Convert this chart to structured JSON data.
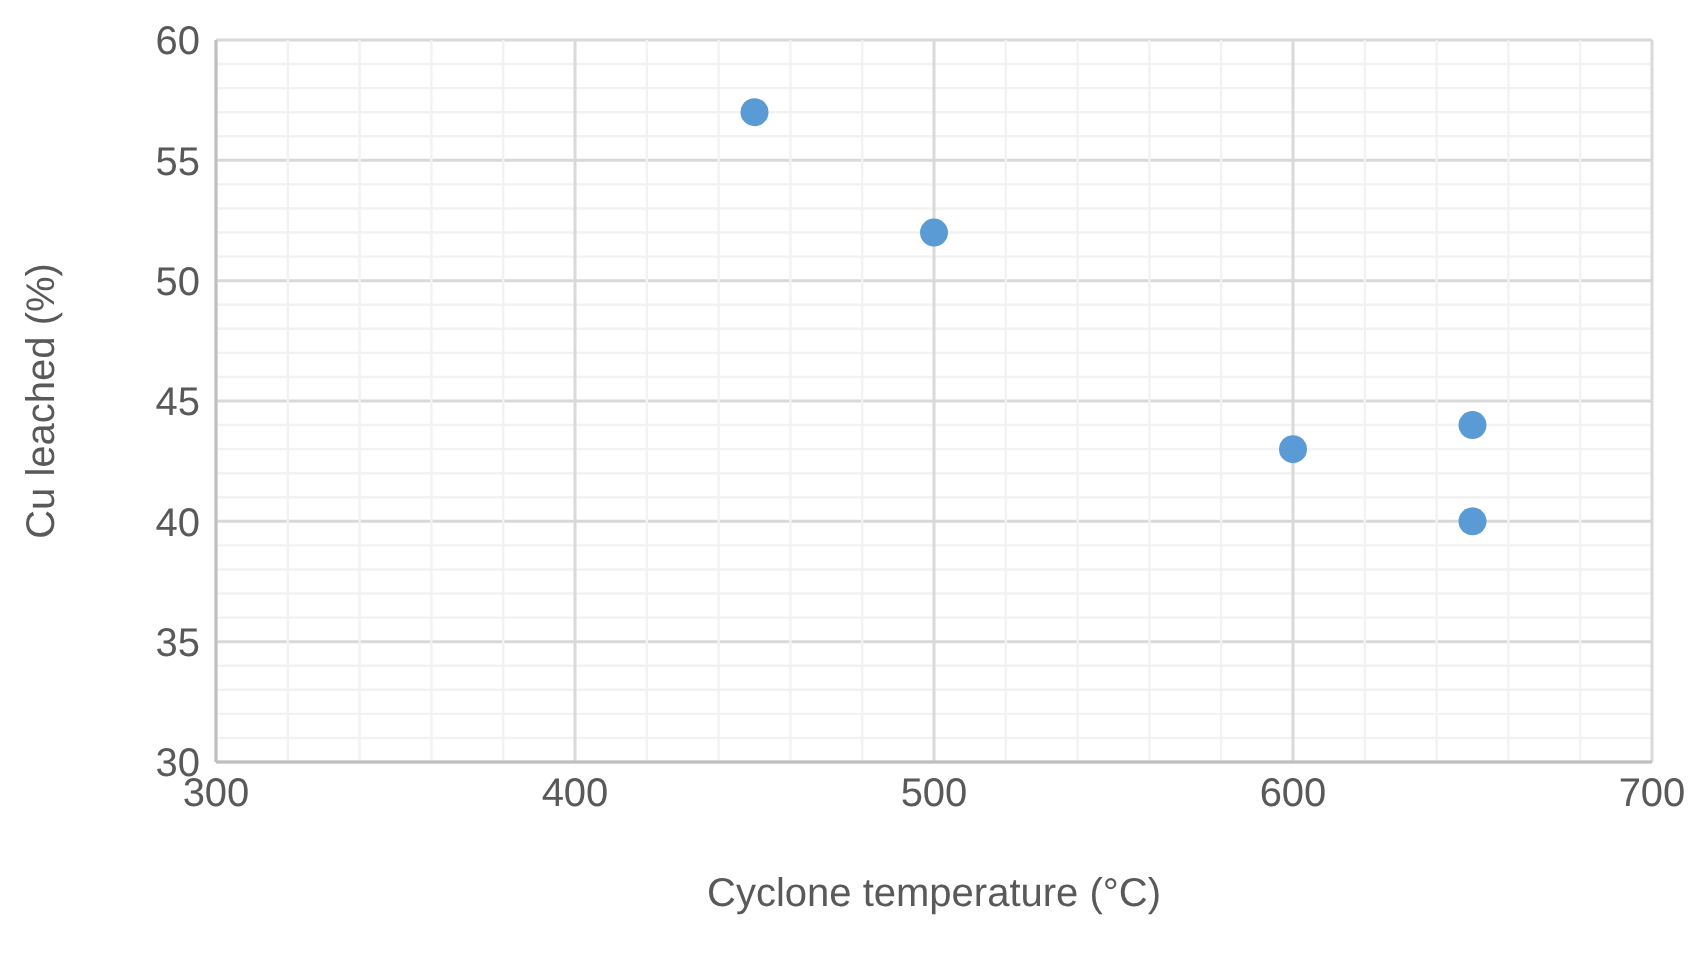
{
  "chart_data": {
    "type": "scatter",
    "xlabel": "Cyclone temperature (°C)",
    "ylabel": "Cu leached (%)",
    "x": [
      450,
      500,
      600,
      650,
      650
    ],
    "series": [
      {
        "color": "#5b9bd5",
        "values": [
          57,
          52,
          43,
          44,
          40
        ]
      }
    ],
    "xlim": [
      300,
      700
    ],
    "xticks": [
      300,
      {
        "value": 320,
        "label": null
      },
      {
        "value": 340,
        "label": null
      },
      {
        "value": 360,
        "label": null
      },
      {
        "value": 380,
        "label": null
      },
      400,
      {
        "value": 420,
        "label": null
      },
      {
        "value": 440,
        "label": null
      },
      {
        "value": 460,
        "label": null
      },
      {
        "value": 480,
        "label": null
      },
      500,
      {
        "value": 520,
        "label": null
      },
      {
        "value": 540,
        "label": null
      },
      {
        "value": 560,
        "label": null
      },
      {
        "value": 580,
        "label": null
      },
      600,
      {
        "value": 620,
        "label": null
      },
      {
        "value": 640,
        "label": null
      },
      {
        "value": 660,
        "label": null
      },
      {
        "value": 680,
        "label": null
      },
      700
    ],
    "ylim": [
      30,
      60
    ],
    "yticks": [
      30,
      {
        "value": 31,
        "label": null
      },
      {
        "value": 32,
        "label": null
      },
      {
        "value": 33,
        "label": null
      },
      {
        "value": 34,
        "label": null
      },
      35,
      {
        "value": 36,
        "label": null
      },
      {
        "value": 37,
        "label": null
      },
      {
        "value": 38,
        "label": null
      },
      {
        "value": 39,
        "label": null
      },
      40,
      {
        "value": 41,
        "label": null
      },
      {
        "value": 42,
        "label": null
      },
      {
        "value": 43,
        "label": null
      },
      {
        "value": 44,
        "label": null
      },
      45,
      {
        "value": 46,
        "label": null
      },
      {
        "value": 47,
        "label": null
      },
      {
        "value": 48,
        "label": null
      },
      {
        "value": 49,
        "label": null
      },
      50,
      {
        "value": 51,
        "label": null
      },
      {
        "value": 52,
        "label": null
      },
      {
        "value": 53,
        "label": null
      },
      {
        "value": 54,
        "label": null
      },
      55,
      {
        "value": 56,
        "label": null
      },
      {
        "value": 57,
        "label": null
      },
      {
        "value": 58,
        "label": null
      },
      {
        "value": 59,
        "label": null
      },
      60
    ],
    "grid": true,
    "marker": "circle"
  }
}
